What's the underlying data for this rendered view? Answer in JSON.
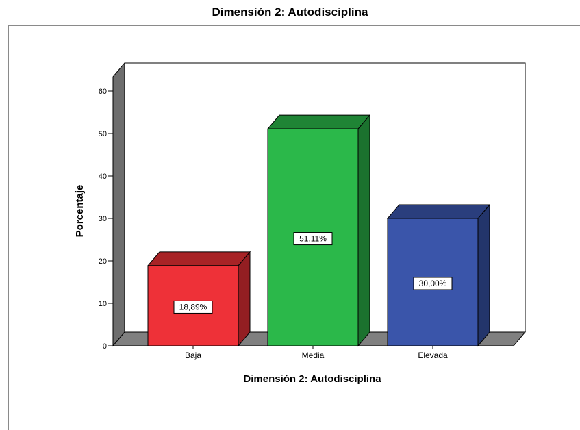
{
  "chart_data": {
    "type": "bar",
    "title": "Dimensión 2: Autodisciplina",
    "xlabel": "Dimensión 2: Autodisciplina",
    "ylabel": "Porcentaje",
    "categories": [
      "Baja",
      "Media",
      "Elevada"
    ],
    "values": [
      18.89,
      51.11,
      30.0
    ],
    "data_labels": [
      "18,89%",
      "51,11%",
      "30,00%"
    ],
    "ylim": [
      0,
      60
    ],
    "yticks": [
      0,
      10,
      20,
      30,
      40,
      50,
      60
    ],
    "style": "3d",
    "legend": "none",
    "grid": false,
    "colors": {
      "bars": [
        "#ee3138",
        "#2bb84a",
        "#3a55aa"
      ],
      "bar_tops": [
        "#a82326",
        "#1f8435",
        "#2a3e7d"
      ],
      "bar_sides": [
        "#931e22",
        "#1b722e",
        "#23356b"
      ],
      "floor": "#808080",
      "wall": "#6e6e6e",
      "plot_background": "#ffffff"
    }
  }
}
